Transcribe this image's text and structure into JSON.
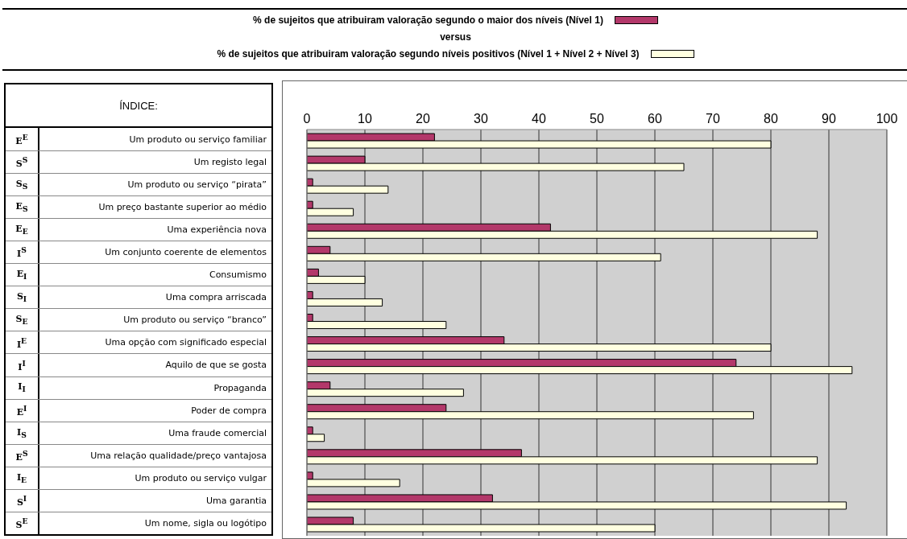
{
  "chart_data": {
    "type": "bar",
    "orientation": "horizontal",
    "categories": [
      "E$^{E}$ Um produto ou serviço familiar",
      "S$^{S}$ Um registo legal",
      "S$_{S}$ Um produto ou serviço “pirata”",
      "E$_{S}$ Um preço bastante superior ao médio",
      "E$_{E}$ Uma experiência nova",
      "I$^{S}$ Um conjunto coerente de elementos",
      "E$_{I}$ Consumismo",
      "S$_{I}$ Uma compra arriscada",
      "S$_{E}$ Um produto ou serviço “branco”",
      "I$^{E}$ Uma opção com significado especial",
      "I$^{I}$ Aquilo de que se gosta",
      "I$_{I}$ Propaganda",
      "E$^{I}$ Poder de compra",
      "I$_{S}$ Uma fraude comercial",
      "E$^{S}$ Uma relação qualidade/preço vantajosa",
      "I$_{E}$ Um produto ou serviço vulgar",
      "S$^{I}$ Uma garantia",
      "S$^{E}$ Um nome, sigla ou logótipo"
    ],
    "series": [
      {
        "name": "% de sujeitos que atribuiram valoração segundo o maior dos níveis (Nível 1)",
        "color": "#b3386a",
        "values": [
          22,
          10,
          1,
          1,
          42,
          4,
          2,
          1,
          1,
          34,
          74,
          4,
          24,
          1,
          37,
          1,
          32,
          8
        ]
      },
      {
        "name": "% de sujeitos que atribuiram valoração segundo níveis positivos (Nível 1 + Nível 2 + Nível 3)",
        "color": "#ffffe0",
        "values": [
          80,
          65,
          14,
          8,
          88,
          61,
          10,
          13,
          24,
          80,
          94,
          27,
          77,
          3,
          88,
          16,
          93,
          60
        ]
      }
    ],
    "annotations": [
      "versus",
      "ÍNDICE:"
    ],
    "xlim": [
      0,
      100
    ],
    "xticks": [
      0,
      10,
      20,
      30,
      40,
      50,
      60,
      70,
      80,
      90,
      100
    ],
    "grid": "x",
    "legend": "top"
  }
}
